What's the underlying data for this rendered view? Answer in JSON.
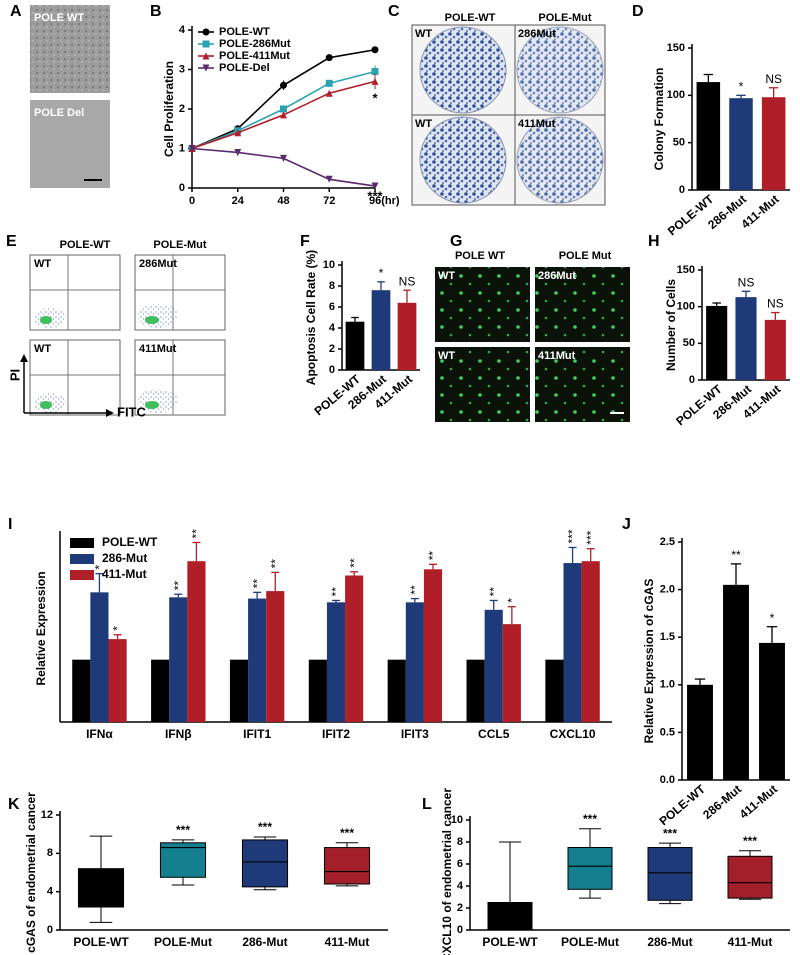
{
  "image_panels": [
    {
      "panel_label": "A",
      "labels": [
        "POLE WT",
        "POLE Del"
      ]
    },
    {
      "panel_label": "C",
      "column_headers": [
        "POLE-WT",
        "POLE-Mut"
      ],
      "labels": [
        "WT",
        "286Mut",
        "WT",
        "411Mut"
      ]
    },
    {
      "panel_label": "E",
      "column_headers": [
        "POLE-WT",
        "POLE-Mut"
      ],
      "labels": [
        "WT",
        "286Mut",
        "WT",
        "411Mut"
      ],
      "axis_labels": [
        "PI",
        "FITC"
      ]
    },
    {
      "panel_label": "G",
      "column_headers": [
        "POLE WT",
        "POLE Mut"
      ],
      "labels": [
        "WT",
        "286Mut",
        "WT",
        "411Mut"
      ]
    }
  ],
  "chart_data": [
    {
      "type": "line",
      "panel_label": "B",
      "ylabel": "Cell Proliferation",
      "x": [
        0,
        24,
        48,
        72,
        96
      ],
      "xlim": [
        0,
        96
      ],
      "xticks": [
        0,
        24,
        48,
        72,
        {
          "value": 96,
          "label": "96(hr)"
        }
      ],
      "ylim": [
        0,
        4
      ],
      "yticks": [
        0,
        1,
        2,
        3,
        4
      ],
      "series": [
        {
          "name": "POLE-WT",
          "color": "#000000",
          "marker": "circle",
          "values": [
            1,
            1.5,
            2.6,
            3.3,
            3.5
          ],
          "errors": [
            0,
            0.03,
            0.12,
            0.04,
            0.04
          ]
        },
        {
          "name": "POLE-286Mut",
          "color": "#2aa3b3",
          "marker": "square",
          "values": [
            1,
            1.45,
            2.0,
            2.65,
            2.95
          ],
          "errors": [
            0,
            0.03,
            0.07,
            0.06,
            0.15
          ]
        },
        {
          "name": "POLE-411Mut",
          "color": "#b01e27",
          "marker": "triangle",
          "values": [
            1,
            1.4,
            1.85,
            2.4,
            2.7
          ],
          "errors": [
            0,
            0.03,
            0.05,
            0.05,
            0.2
          ],
          "annotation": "*"
        },
        {
          "name": "POLE-Del",
          "color": "#5b2a6e",
          "marker": "triangle-down",
          "values": [
            1,
            0.9,
            0.75,
            0.22,
            0.05
          ],
          "errors": [
            0,
            0.08,
            0.04,
            0.03,
            0.02
          ],
          "annotation": "***"
        }
      ]
    },
    {
      "type": "bar",
      "panel_label": "D",
      "ylabel": "Colony Formation",
      "categories": [
        "POLE-WT",
        "286-Mut",
        "411-Mut"
      ],
      "values": [
        114,
        97,
        98
      ],
      "errors": [
        8,
        3,
        10
      ],
      "colors": [
        "#000000",
        "#1f3a78",
        "#b01e27"
      ],
      "annotations": [
        null,
        "*",
        "NS"
      ],
      "ylim": [
        0,
        150
      ],
      "yticks": [
        0,
        50,
        100,
        150
      ]
    },
    {
      "type": "bar",
      "panel_label": "F",
      "ylabel": "Apoptosis Cell Rate (%)",
      "categories": [
        "POLE-WT",
        "286-Mut",
        "411-Mut"
      ],
      "values": [
        4.6,
        7.6,
        6.4
      ],
      "errors": [
        0.4,
        0.8,
        1.2
      ],
      "colors": [
        "#000000",
        "#1f3a78",
        "#b01e27"
      ],
      "annotations": [
        null,
        "*",
        "NS"
      ],
      "ylim": [
        0,
        10
      ],
      "yticks": [
        0,
        2,
        4,
        6,
        8,
        10
      ]
    },
    {
      "type": "bar",
      "panel_label": "H",
      "ylabel": "Number of Cells",
      "categories": [
        "POLE-WT",
        "286-Mut",
        "411-Mut"
      ],
      "values": [
        101,
        113,
        82
      ],
      "errors": [
        4,
        8,
        10
      ],
      "colors": [
        "#000000",
        "#1f3a78",
        "#b01e27"
      ],
      "annotations": [
        null,
        "NS",
        "NS"
      ],
      "ylim": [
        0,
        150
      ],
      "yticks": [
        0,
        50,
        100,
        150
      ]
    },
    {
      "type": "grouped-bar",
      "panel_label": "I",
      "ylabel": "Relative Expression",
      "categories": [
        "IFNα",
        "IFNβ",
        "IFIT1",
        "IFIT2",
        "IFIT3",
        "CCL5",
        "CXCL10"
      ],
      "ylim": [
        0,
        3
      ],
      "series": [
        {
          "name": "POLE-WT",
          "color": "#000000",
          "values": [
            1,
            1,
            1,
            1,
            1,
            1,
            1
          ]
        },
        {
          "name": "286-Mut",
          "color": "#1f3a78",
          "values": [
            2.08,
            2.0,
            1.98,
            1.92,
            1.92,
            1.8,
            2.55
          ],
          "errors": [
            0.3,
            0.05,
            0.1,
            0.03,
            0.06,
            0.15,
            0.25
          ],
          "annotations": [
            "*",
            "**",
            "**",
            "**",
            "**",
            "**",
            "***"
          ]
        },
        {
          "name": "411-Mut",
          "color": "#b01e27",
          "values": [
            1.33,
            2.58,
            2.1,
            2.35,
            2.45,
            1.57,
            2.58
          ],
          "errors": [
            0.07,
            0.3,
            0.3,
            0.06,
            0.08,
            0.28,
            0.2
          ],
          "annotations": [
            "*",
            "**",
            "**",
            "**",
            "**",
            "*",
            "***"
          ]
        }
      ]
    },
    {
      "type": "bar",
      "panel_label": "J",
      "ylabel": "Relative Expression of cGAS",
      "categories": [
        "POLE-WT",
        "286-Mut",
        "411-Mut"
      ],
      "values": [
        1.0,
        2.05,
        1.44
      ],
      "errors": [
        0.06,
        0.22,
        0.17
      ],
      "colors": [
        "#000000",
        "#000000",
        "#000000"
      ],
      "annotations": [
        null,
        "**",
        "*"
      ],
      "ylim": [
        0,
        2.5
      ],
      "yticks": [
        {
          "value": 0,
          "label": "0.0"
        },
        {
          "value": 0.5,
          "label": "0.5"
        },
        {
          "value": 1,
          "label": "1.0"
        },
        {
          "value": 1.5,
          "label": "1.5"
        },
        {
          "value": 2,
          "label": "2.0"
        },
        {
          "value": 2.5,
          "label": "2.5"
        }
      ]
    },
    {
      "type": "box",
      "panel_label": "K",
      "ylabel": "cGAS of endometrial cancer",
      "categories": [
        "POLE-WT",
        "POLE-Mut",
        "286-Mut",
        "411-Mut"
      ],
      "colors": [
        "#000000",
        "#137f8f",
        "#1f3a78",
        "#a31f2a"
      ],
      "annotations": [
        null,
        "***",
        "***",
        "***"
      ],
      "boxes": [
        {
          "min": 0.8,
          "q1": 2.4,
          "median": null,
          "q3": 6.4,
          "max": 9.8
        },
        {
          "min": 4.7,
          "q1": 5.5,
          "median": 8.6,
          "q3": 9.1,
          "max": 9.4
        },
        {
          "min": 4.2,
          "q1": 4.5,
          "median": 7.1,
          "q3": 9.4,
          "max": 9.7
        },
        {
          "min": 4.6,
          "q1": 4.8,
          "median": 6.1,
          "q3": 8.6,
          "max": 9.1
        }
      ],
      "ylim": [
        0,
        12
      ],
      "yticks": [
        0,
        4,
        8,
        12
      ]
    },
    {
      "type": "box",
      "panel_label": "L",
      "ylabel": "CXCL10 of endometrial cancer",
      "categories": [
        "POLE-WT",
        "POLE-Mut",
        "286-Mut",
        "411-Mut"
      ],
      "colors": [
        "#000000",
        "#137f8f",
        "#1f3a78",
        "#a31f2a"
      ],
      "annotations": [
        null,
        "***",
        "***",
        "***"
      ],
      "boxes": [
        {
          "min": 0,
          "q1": 0,
          "median": null,
          "q3": 2.5,
          "max": 8.0
        },
        {
          "min": 2.9,
          "q1": 3.7,
          "median": 5.8,
          "q3": 7.5,
          "max": 9.2
        },
        {
          "min": 2.4,
          "q1": 2.7,
          "median": 5.2,
          "q3": 7.5,
          "max": 7.9
        },
        {
          "min": 2.8,
          "q1": 2.9,
          "median": 4.3,
          "q3": 6.7,
          "max": 7.2
        }
      ],
      "ylim": [
        0,
        10
      ],
      "yticks": [
        0,
        2,
        4,
        6,
        8,
        10
      ]
    }
  ]
}
